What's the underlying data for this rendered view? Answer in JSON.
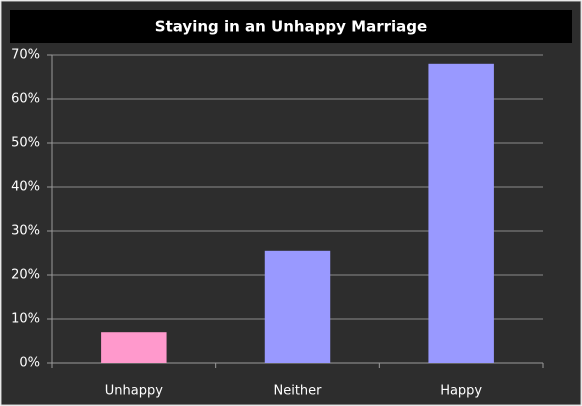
{
  "chart_data": {
    "type": "bar",
    "title": "Staying in an Unhappy Marriage",
    "categories": [
      "Unhappy",
      "Neither",
      "Happy"
    ],
    "values": [
      7,
      25.5,
      68
    ],
    "colors": [
      "#ff99cc",
      "#9999ff",
      "#9999ff"
    ],
    "ylim": [
      0,
      70
    ],
    "yticks": [
      {
        "value": 0,
        "label": "0%"
      },
      {
        "value": 10,
        "label": "10%"
      },
      {
        "value": 20,
        "label": "20%"
      },
      {
        "value": 30,
        "label": "30%"
      },
      {
        "value": 40,
        "label": "40%"
      },
      {
        "value": 50,
        "label": "50%"
      },
      {
        "value": 60,
        "label": "60%"
      },
      {
        "value": 70,
        "label": "70%"
      }
    ],
    "grid": true
  }
}
